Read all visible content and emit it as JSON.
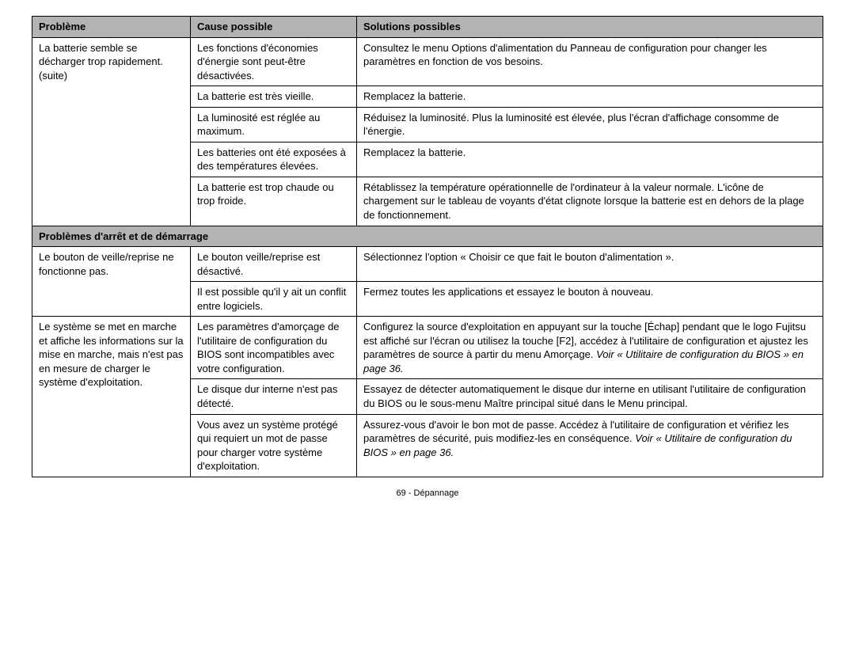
{
  "table": {
    "headers": {
      "c1": "Problème",
      "c2": "Cause possible",
      "c3": "Solutions possibles"
    },
    "section1": {
      "problem": "La batterie semble se décharger trop rapidement. (suite)",
      "rows": [
        {
          "cause": "Les fonctions d'économies d'énergie sont peut-être désactivées.",
          "sol": "Consultez le menu Options d'alimentation du Panneau de configuration pour changer les paramètres en fonction de vos besoins."
        },
        {
          "cause": "La batterie est très vieille.",
          "sol": "Remplacez la batterie."
        },
        {
          "cause": "La luminosité est réglée au maximum.",
          "sol": "Réduisez la luminosité. Plus la luminosité est élevée, plus l'écran d'affichage consomme de l'énergie."
        },
        {
          "cause": "Les batteries ont été exposées à des températures élevées.",
          "sol": "Remplacez la batterie."
        },
        {
          "cause": "La batterie est trop chaude ou trop froide.",
          "sol": "Rétablissez la température opérationnelle de l'ordinateur à la valeur normale. L'icône de chargement sur le tableau de voyants d'état clignote lorsque la batterie est en dehors de la plage de fonctionnement."
        }
      ]
    },
    "section2_title": "Problèmes d'arrêt et de démarrage",
    "section2a": {
      "problem": "Le bouton de veille/reprise ne fonctionne pas.",
      "rows": [
        {
          "cause": "Le bouton veille/reprise est désactivé.",
          "sol": "Sélectionnez l'option « Choisir ce que fait le bouton d'alimentation »."
        },
        {
          "cause": "Il est possible qu'il y ait un conflit entre logiciels.",
          "sol": "Fermez toutes les applications et essayez le bouton à nouveau."
        }
      ]
    },
    "section2b": {
      "problem": "Le système se met en marche et affiche les informations sur la mise en marche, mais n'est pas en mesure de charger le système d'exploitation.",
      "rows": [
        {
          "cause": "Les paramètres d'amorçage de l'utilitaire de configuration du BIOS sont incompatibles avec votre configuration.",
          "sol_main": "Configurez la source d'exploitation en appuyant sur la touche [Échap] pendant que le logo Fujitsu est affiché sur l'écran ou utilisez la touche [F2], accédez à l'utilitaire de configuration et ajustez les paramètres de source à partir du menu Amorçage. ",
          "sol_ref": "Voir « Utilitaire de configuration du BIOS » en page 36."
        },
        {
          "cause": "Le disque dur interne n'est pas détecté.",
          "sol_main": "Essayez de détecter automatiquement le disque dur interne en utilisant l'utilitaire de configuration du BIOS ou le sous-menu Maître principal situé dans le Menu principal.",
          "sol_ref": ""
        },
        {
          "cause": "Vous avez un système protégé qui requiert un mot de passe pour charger votre système d'exploitation.",
          "sol_main": "Assurez-vous d'avoir le bon mot de passe. Accédez à l'utilitaire de configuration et vérifiez les paramètres de sécurité, puis modifiez-les en conséquence. ",
          "sol_ref": "Voir « Utilitaire de configuration du BIOS » en page 36."
        }
      ]
    }
  },
  "footer": "69 - Dépannage"
}
